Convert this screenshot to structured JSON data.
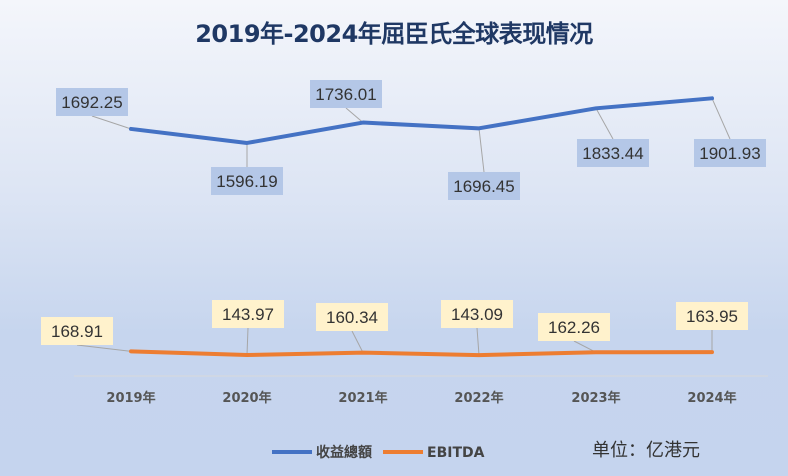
{
  "chart_data": {
    "type": "line",
    "title": "2019年-2024年屈臣氏全球表现情况",
    "categories": [
      "2019年",
      "2020年",
      "2021年",
      "2022年",
      "2023年",
      "2024年"
    ],
    "series": [
      {
        "name": "收益總額",
        "values": [
          1692.25,
          1596.19,
          1736.01,
          1696.45,
          1833.44,
          1901.93
        ],
        "color": "#4472c4",
        "label_bg": "#b4c7e7"
      },
      {
        "name": "EBITDA",
        "values": [
          168.91,
          143.97,
          160.34,
          143.09,
          162.26,
          163.95
        ],
        "color": "#ed7d31",
        "label_bg": "#fff2cc"
      }
    ],
    "ylim": [
      0,
      2000
    ],
    "grid": false,
    "legend": "bottom",
    "unit_note": "单位：亿港元"
  }
}
